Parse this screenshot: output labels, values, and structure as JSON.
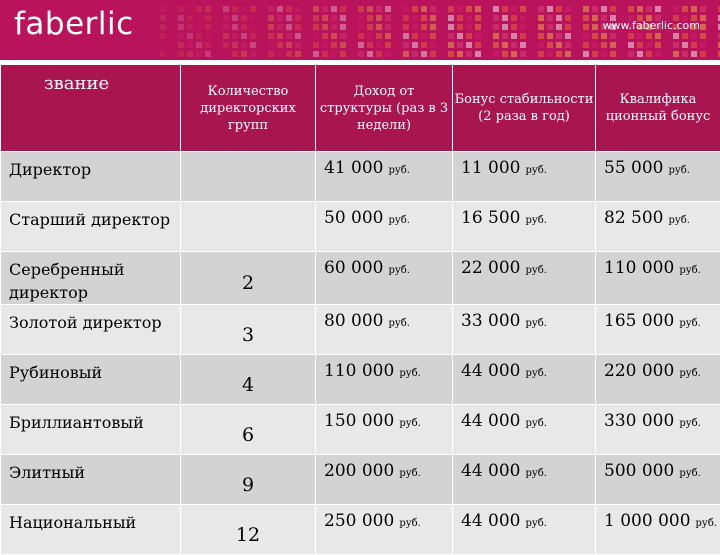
{
  "brand": {
    "logo_text": "faberlic",
    "url_text": "www.faberlic.com",
    "colors": {
      "header": "#b8135b",
      "table_header": "#a8154f",
      "row_dark": "#d3d3d3",
      "row_light": "#e8e8e8"
    }
  },
  "table": {
    "headers": [
      "звание",
      "Количество директорских групп",
      "Доход от структуры (раз в 3 недели)",
      "Бонус стабильности (2 раза в год)",
      "Квалифика ционный бонус"
    ],
    "unit": "руб.",
    "rows": [
      {
        "rank": "Директор",
        "groups": "",
        "income": "41 000",
        "stability": "11 000",
        "qualification": "55 000"
      },
      {
        "rank": "Старший директор",
        "groups": "",
        "income": "50 000",
        "stability": "16 500",
        "qualification": "82 500"
      },
      {
        "rank": "Серебренный директор",
        "groups": "2",
        "income": "60 000",
        "stability": "22 000",
        "qualification": "110 000"
      },
      {
        "rank": "Золотой директор",
        "groups": "3",
        "income": "80 000",
        "stability": "33 000",
        "qualification": "165 000"
      },
      {
        "rank": "Рубиновый",
        "groups": "4",
        "income": "110 000",
        "stability": "44 000",
        "qualification": "220 000"
      },
      {
        "rank": "Бриллиантовый",
        "groups": "6",
        "income": "150 000",
        "stability": "44 000",
        "qualification": "330 000"
      },
      {
        "rank": "Элитный",
        "groups": "9",
        "income": "200 000",
        "stability": "44 000",
        "qualification": "500 000"
      },
      {
        "rank": "Национальный",
        "groups": "12",
        "income": "250 000",
        "stability": "44 000",
        "qualification": "1 000 000"
      }
    ]
  }
}
